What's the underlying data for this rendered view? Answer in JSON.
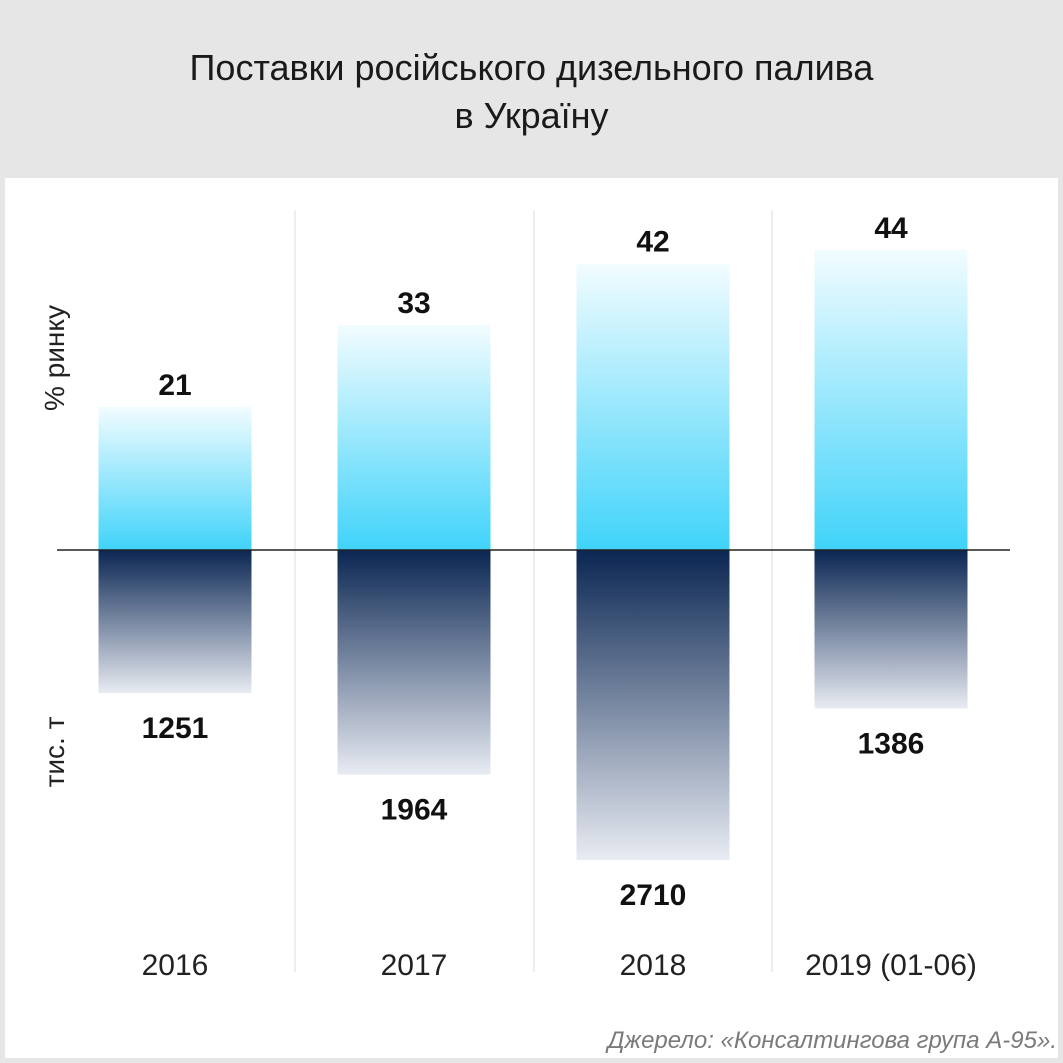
{
  "title": {
    "line1": "Поставки російського дизельного палива",
    "line2": "в Україну"
  },
  "source": "Джерело: «Консалтингова група А-95».",
  "colors": {
    "top_light": "#f2fcff",
    "top_dark": "#40d3fa",
    "bottom_dark": "#0a2652",
    "bottom_light": "#e8ebf2",
    "axis": "#222222",
    "separator": "#dcdcdc"
  },
  "chart_data": {
    "type": "bar",
    "categories": [
      "2016",
      "2017",
      "2018",
      "2019 (01-06)"
    ],
    "series": [
      {
        "name": "% ринку",
        "values": [
          21,
          33,
          42,
          44
        ],
        "direction": "up"
      },
      {
        "name": "тис. т",
        "values": [
          1251,
          1964,
          2710,
          1386
        ],
        "direction": "down"
      }
    ],
    "ylabel_top": "% ринку",
    "ylabel_bottom": "тис. т",
    "ylim_top": [
      0,
      44
    ],
    "ylim_bottom": [
      0,
      2710
    ],
    "grid": false,
    "legend": "none"
  }
}
